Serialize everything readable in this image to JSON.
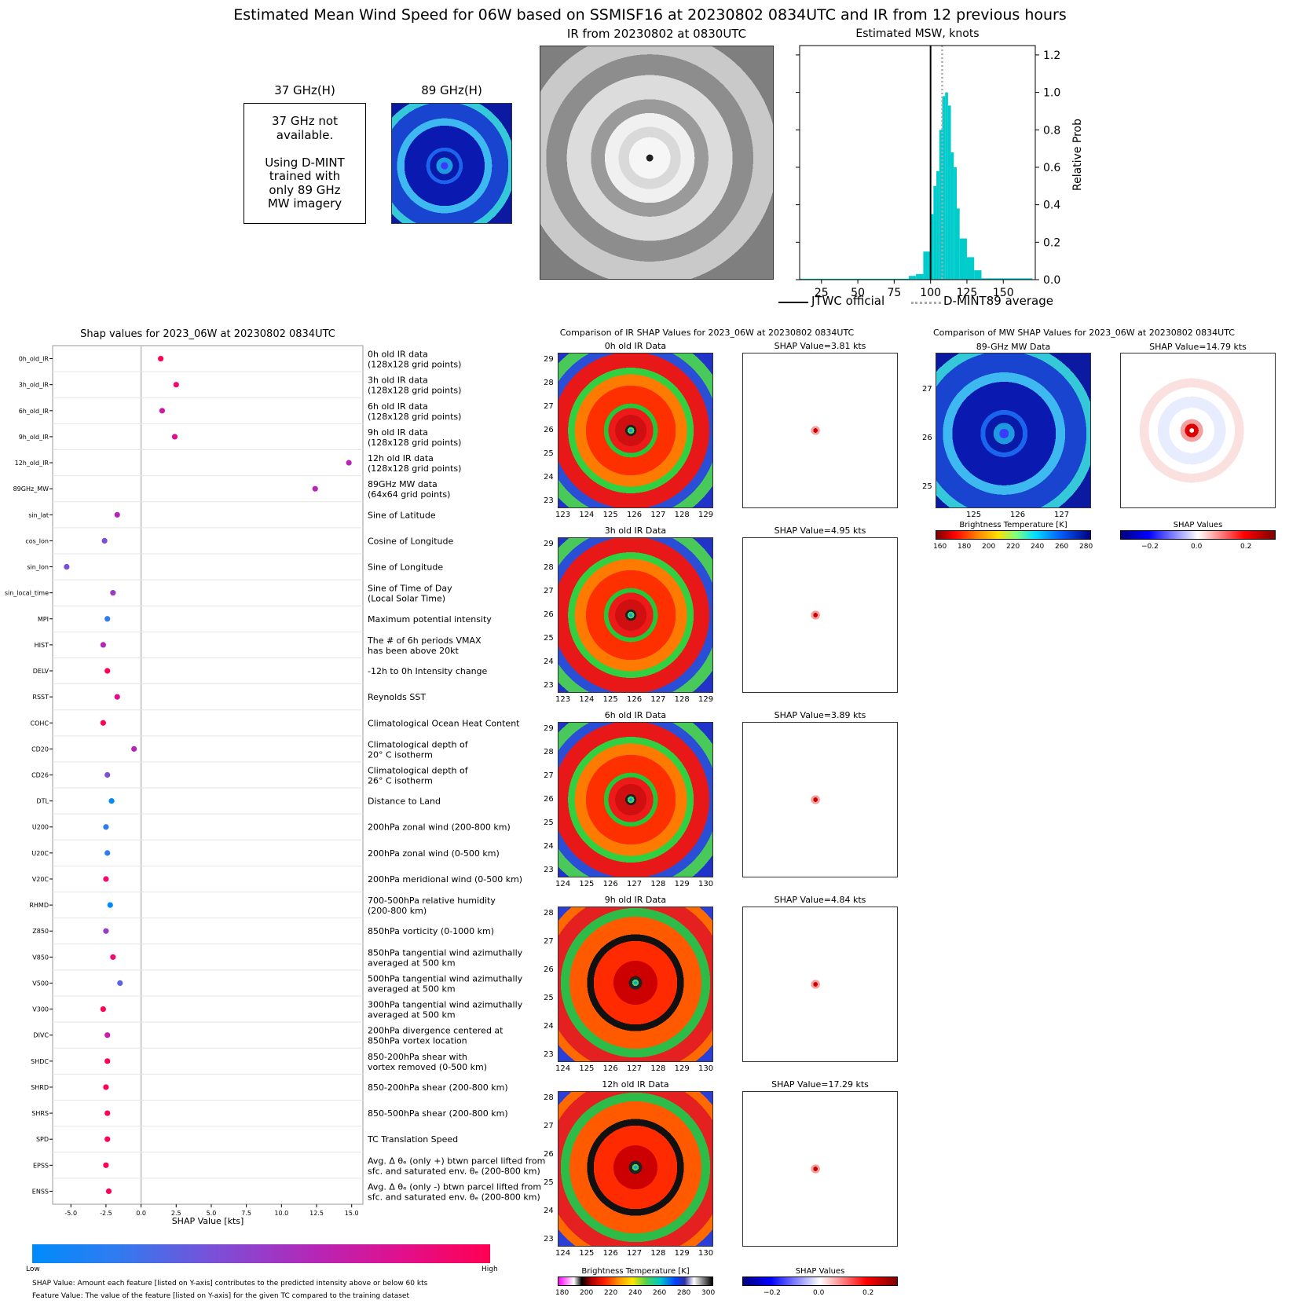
{
  "main_title": "Estimated Mean Wind Speed for 06W based on SSMISF16 at 20230802 0834UTC and IR from 12 previous hours",
  "panel37": {
    "title": "37 GHz(H)",
    "lines": [
      "37 GHz not",
      "available.",
      "",
      "Using D-MINT",
      "trained with",
      "only 89 GHz",
      "MW imagery"
    ]
  },
  "panel89": {
    "title": "89 GHz(H)"
  },
  "ir_panel": {
    "title": "IR from 20230802 at 0830UTC"
  },
  "hist": {
    "title": "Estimated MSW, knots",
    "ylabel": "Relative Prob",
    "legend_jtwc": "JTWC official",
    "legend_dmint": "D-MINT89 average"
  },
  "shap_title": "Shap values for 2023_06W at 20230802 0834UTC",
  "shap_xlabel": "SHAP Value [kts]",
  "feature_bar": {
    "low": "Low",
    "high": "High"
  },
  "footnote1": "SHAP Value: Amount each feature [listed on Y-axis] contributes to the predicted intensity above or below 60 kts",
  "footnote2": "Feature Value: The value of the feature [listed on Y-axis] for the given TC compared to the training dataset",
  "ir_compare": {
    "title": "Comparison of IR SHAP Values for 2023_06W at 20230802 0834UTC",
    "panels": [
      {
        "data_title": "0h old IR Data",
        "shap_title": "SHAP Value=3.81 kts",
        "yticks": [
          "29",
          "28",
          "27",
          "26",
          "25",
          "24",
          "23"
        ],
        "xticks": [
          "123",
          "124",
          "125",
          "126",
          "127",
          "128",
          "129"
        ]
      },
      {
        "data_title": "3h old IR Data",
        "shap_title": "SHAP Value=4.95 kts",
        "yticks": [
          "29",
          "28",
          "27",
          "26",
          "25",
          "24",
          "23"
        ],
        "xticks": [
          "123",
          "124",
          "125",
          "126",
          "127",
          "128",
          "129"
        ]
      },
      {
        "data_title": "6h old IR Data",
        "shap_title": "SHAP Value=3.89 kts",
        "yticks": [
          "29",
          "28",
          "27",
          "26",
          "25",
          "24",
          "23"
        ],
        "xticks": [
          "124",
          "125",
          "126",
          "127",
          "128",
          "129",
          "130"
        ]
      },
      {
        "data_title": "9h old IR Data",
        "shap_title": "SHAP Value=4.84 kts",
        "yticks": [
          "28",
          "27",
          "26",
          "25",
          "24",
          "23"
        ],
        "xticks": [
          "124",
          "125",
          "126",
          "127",
          "128",
          "129",
          "130"
        ]
      },
      {
        "data_title": "12h old IR Data",
        "shap_title": "SHAP Value=17.29 kts",
        "yticks": [
          "28",
          "27",
          "26",
          "25",
          "24",
          "23"
        ],
        "xticks": [
          "124",
          "125",
          "126",
          "127",
          "128",
          "129",
          "130"
        ]
      }
    ],
    "cbar_ir_label": "Brightness Temperature [K]",
    "cbar_ir_ticks": [
      "180",
      "200",
      "220",
      "240",
      "260",
      "280",
      "300"
    ],
    "cbar_shap_label": "SHAP Values",
    "cbar_shap_ticks": [
      "−0.2",
      "0.0",
      "0.2"
    ]
  },
  "mw_compare": {
    "title": "Comparison of MW SHAP Values for 2023_06W at 20230802 0834UTC",
    "data_title": "89-GHz MW Data",
    "shap_title": "SHAP Value=14.79 kts",
    "yticks": [
      "27",
      "26",
      "25"
    ],
    "xticks": [
      "125",
      "126",
      "127"
    ],
    "cbar_label": "Brightness Temperature [K]",
    "cbar_ticks": [
      "160",
      "180",
      "200",
      "220",
      "240",
      "260",
      "280"
    ],
    "shap_cbar_label": "SHAP Values",
    "shap_cbar_ticks": [
      "−0.2",
      "0.0",
      "0.2"
    ]
  },
  "chart_data": [
    {
      "type": "bar",
      "title": "Estimated MSW, knots",
      "ylabel": "Relative Prob",
      "xlim": [
        10,
        172
      ],
      "ylim": [
        0,
        1.25
      ],
      "xticks": [
        25,
        50,
        75,
        100,
        125,
        150
      ],
      "yticks": [
        0.0,
        0.2,
        0.4,
        0.6,
        0.8,
        1.0,
        1.2
      ],
      "bins": [
        [
          10,
          85,
          0.005
        ],
        [
          85,
          90,
          0.02
        ],
        [
          90,
          95,
          0.03
        ],
        [
          95,
          100,
          0.15
        ],
        [
          100,
          102,
          0.35
        ],
        [
          102,
          104,
          0.5
        ],
        [
          104,
          106,
          0.58
        ],
        [
          106,
          108,
          0.8
        ],
        [
          108,
          110,
          0.98
        ],
        [
          110,
          112,
          1.0
        ],
        [
          112,
          114,
          0.93
        ],
        [
          114,
          116,
          0.68
        ],
        [
          116,
          118,
          0.6
        ],
        [
          118,
          120,
          0.38
        ],
        [
          120,
          125,
          0.22
        ],
        [
          125,
          130,
          0.12
        ],
        [
          130,
          135,
          0.05
        ],
        [
          135,
          170,
          0.007
        ]
      ],
      "jtwc_official": 100,
      "dmint_average": 108
    },
    {
      "type": "scatter",
      "title": "Shap values for 2023_06W at 20230802 0834UTC",
      "xlabel": "SHAP Value [kts]",
      "xlim": [
        -6.3,
        15.8
      ],
      "xticks": [
        -5.0,
        -2.5,
        0.0,
        2.5,
        5.0,
        7.5,
        10.0,
        12.5,
        15.0
      ],
      "features": [
        {
          "name": "0h_old_IR",
          "desc": [
            "0h old IR data",
            "(128x128 grid points)"
          ],
          "shap": 1.4,
          "fval": 0.95
        },
        {
          "name": "3h_old_IR",
          "desc": [
            "3h old IR data",
            "(128x128 grid points)"
          ],
          "shap": 2.5,
          "fval": 0.9
        },
        {
          "name": "6h_old_IR",
          "desc": [
            "6h old IR data",
            "(128x128 grid points)"
          ],
          "shap": 1.5,
          "fval": 0.65
        },
        {
          "name": "9h_old_IR",
          "desc": [
            "9h old IR data",
            "(128x128 grid points)"
          ],
          "shap": 2.4,
          "fval": 0.8
        },
        {
          "name": "12h_old_IR",
          "desc": [
            "12h old IR data",
            "(128x128 grid points)"
          ],
          "shap": 14.8,
          "fval": 0.6
        },
        {
          "name": "89GHz_MW",
          "desc": [
            "89GHz MW data",
            "(64x64 grid points)"
          ],
          "shap": 12.4,
          "fval": 0.55
        },
        {
          "name": "sin_lat",
          "desc": [
            "Sine of Latitude"
          ],
          "shap": -1.7,
          "fval": 0.55
        },
        {
          "name": "cos_lon",
          "desc": [
            "Cosine of Longitude"
          ],
          "shap": -2.6,
          "fval": 0.35
        },
        {
          "name": "sin_lon",
          "desc": [
            "Sine of Longitude"
          ],
          "shap": -5.3,
          "fval": 0.35
        },
        {
          "name": "sin_local_time",
          "desc": [
            "Sine of Time of Day",
            "(Local Solar Time)"
          ],
          "shap": -2.0,
          "fval": 0.4
        },
        {
          "name": "MPI",
          "desc": [
            "Maximum potential intensity"
          ],
          "shap": -2.4,
          "fval": 0.1
        },
        {
          "name": "HIST",
          "desc": [
            "The # of 6h periods VMAX",
            "has been above 20kt"
          ],
          "shap": -2.7,
          "fval": 0.55
        },
        {
          "name": "DELV",
          "desc": [
            "-12h to 0h Intensity change"
          ],
          "shap": -2.4,
          "fval": 0.97
        },
        {
          "name": "RSST",
          "desc": [
            "Reynolds SST"
          ],
          "shap": -1.7,
          "fval": 0.75
        },
        {
          "name": "COHC",
          "desc": [
            "Climatological Ocean Heat Content"
          ],
          "shap": -2.7,
          "fval": 0.97
        },
        {
          "name": "CD20",
          "desc": [
            "Climatological depth of",
            "20° C isotherm"
          ],
          "shap": -0.5,
          "fval": 0.6
        },
        {
          "name": "CD26",
          "desc": [
            "Climatological depth of",
            "26° C isotherm"
          ],
          "shap": -2.4,
          "fval": 0.3
        },
        {
          "name": "DTL",
          "desc": [
            "Distance to Land"
          ],
          "shap": -2.1,
          "fval": 0.05
        },
        {
          "name": "U200",
          "desc": [
            "200hPa zonal wind (200-800 km)"
          ],
          "shap": -2.5,
          "fval": 0.08
        },
        {
          "name": "U20C",
          "desc": [
            "200hPa zonal wind (0-500 km)"
          ],
          "shap": -2.4,
          "fval": 0.08
        },
        {
          "name": "V20C",
          "desc": [
            "200hPa meridional wind (0-500 km)"
          ],
          "shap": -2.5,
          "fval": 0.92
        },
        {
          "name": "RHMD",
          "desc": [
            "700-500hPa relative humidity",
            "(200-800 km)"
          ],
          "shap": -2.2,
          "fval": 0.05
        },
        {
          "name": "Z850",
          "desc": [
            "850hPa vorticity (0-1000 km)"
          ],
          "shap": -2.5,
          "fval": 0.45
        },
        {
          "name": "V850",
          "desc": [
            "850hPa tangential wind azimuthally",
            "averaged at 500 km"
          ],
          "shap": -2.0,
          "fval": 0.92
        },
        {
          "name": "V500",
          "desc": [
            "500hPa tangential wind azimuthally",
            "averaged at 500 km"
          ],
          "shap": -1.5,
          "fval": 0.2
        },
        {
          "name": "V300",
          "desc": [
            "300hPa tangential wind azimuthally",
            "averaged at 500 km"
          ],
          "shap": -2.7,
          "fval": 0.97
        },
        {
          "name": "DIVC",
          "desc": [
            "200hPa divergence centered at",
            "850hPa vortex location"
          ],
          "shap": -2.4,
          "fval": 0.65
        },
        {
          "name": "SHDC",
          "desc": [
            "850-200hPa shear with",
            "vortex removed (0-500 km)"
          ],
          "shap": -2.4,
          "fval": 0.95
        },
        {
          "name": "SHRD",
          "desc": [
            "850-200hPa shear (200-800 km)"
          ],
          "shap": -2.5,
          "fval": 0.95
        },
        {
          "name": "SHRS",
          "desc": [
            "850-500hPa shear (200-800 km)"
          ],
          "shap": -2.4,
          "fval": 0.95
        },
        {
          "name": "SPD",
          "desc": [
            "TC Translation Speed"
          ],
          "shap": -2.4,
          "fval": 0.95
        },
        {
          "name": "EPSS",
          "desc": [
            "Avg. Δ θₑ (only +) btwn parcel lifted from",
            "sfc. and saturated env. θₑ (200-800 km)"
          ],
          "shap": -2.5,
          "fval": 0.95
        },
        {
          "name": "ENSS",
          "desc": [
            "Avg. Δ θₑ (only -) btwn parcel lifted from",
            "sfc. and saturated env. θₑ (200-800 km)"
          ],
          "shap": -2.3,
          "fval": 0.95
        }
      ]
    }
  ]
}
